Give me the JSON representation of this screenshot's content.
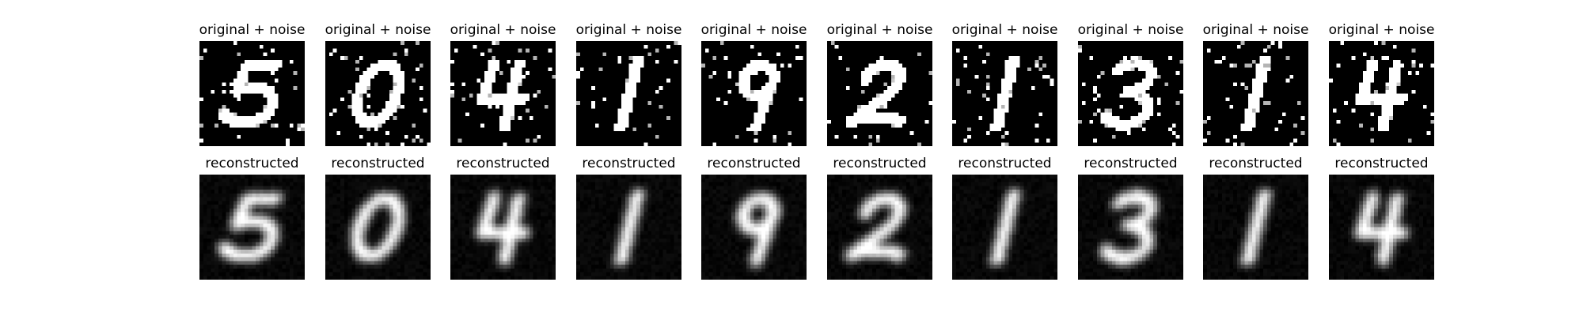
{
  "rows": [
    {
      "key": "noisy",
      "panels": [
        {
          "title": "original + noise",
          "digit": "5"
        },
        {
          "title": "original + noise",
          "digit": "0"
        },
        {
          "title": "original + noise",
          "digit": "4"
        },
        {
          "title": "original + noise",
          "digit": "1"
        },
        {
          "title": "original + noise",
          "digit": "9"
        },
        {
          "title": "original + noise",
          "digit": "2"
        },
        {
          "title": "original + noise",
          "digit": "1"
        },
        {
          "title": "original + noise",
          "digit": "3"
        },
        {
          "title": "original + noise",
          "digit": "1"
        },
        {
          "title": "original + noise",
          "digit": "4"
        }
      ]
    },
    {
      "key": "reconstructed",
      "panels": [
        {
          "title": "reconstructed",
          "digit": "5"
        },
        {
          "title": "reconstructed",
          "digit": "0"
        },
        {
          "title": "reconstructed",
          "digit": "4"
        },
        {
          "title": "reconstructed",
          "digit": "1"
        },
        {
          "title": "reconstructed",
          "digit": "9"
        },
        {
          "title": "reconstructed",
          "digit": "2"
        },
        {
          "title": "reconstructed",
          "digit": "1"
        },
        {
          "title": "reconstructed",
          "digit": "3"
        },
        {
          "title": "reconstructed",
          "digit": "1"
        },
        {
          "title": "reconstructed",
          "digit": "4"
        }
      ]
    }
  ],
  "colors": {
    "background": "#ffffff",
    "image_background": "#000000",
    "stroke": "#ffffff"
  }
}
